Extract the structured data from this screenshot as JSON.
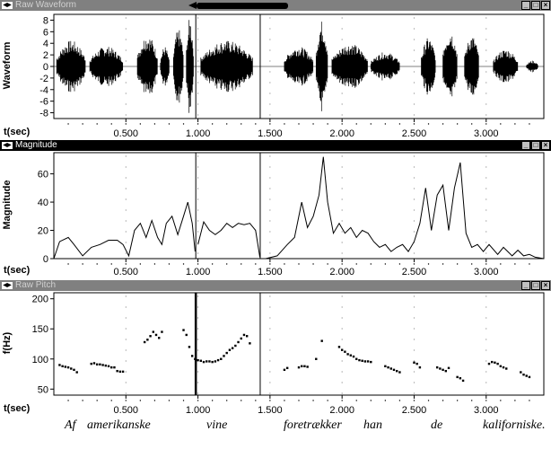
{
  "panels": {
    "waveform": {
      "title": "Raw Waveform",
      "ylabel": "Waveform",
      "xlabel": "t(sec)",
      "yticks": [
        "8",
        "6",
        "4",
        "2",
        "0",
        "-2",
        "-4",
        "-6",
        "-8"
      ],
      "xticks": [
        "0.500",
        "1.000",
        "1.500",
        "2.000",
        "2.500",
        "3.000"
      ]
    },
    "magnitude": {
      "title": "Magnitude",
      "ylabel": "Magnitude",
      "xlabel": "t(sec)",
      "yticks": [
        "60",
        "40",
        "20",
        "0"
      ],
      "xticks": [
        "0.500",
        "1.000",
        "1.500",
        "2.000",
        "2.500",
        "3.000"
      ]
    },
    "pitch": {
      "title": "Raw Pitch",
      "ylabel": "f(Hz)",
      "xlabel": "t(sec)",
      "yticks": [
        "200",
        "150",
        "100",
        "50"
      ],
      "xticks": [
        "0.500",
        "1.000",
        "1.500",
        "2.000",
        "2.500",
        "3.000"
      ]
    }
  },
  "window_controls": {
    "minimize": "_",
    "maximize": "□",
    "close": "×"
  },
  "caption": {
    "w1": "Af",
    "w2": "amerikanske",
    "w3": "vine",
    "w4": "foretrækker",
    "w5": "han",
    "w6": "de",
    "w7": "kaliforniske."
  },
  "markers_sec": [
    0.985,
    1.432
  ],
  "chart_data": [
    {
      "type": "line",
      "title": "Raw Waveform",
      "ylabel": "Waveform",
      "xlabel": "t(sec)",
      "xlim": [
        0.0,
        3.4
      ],
      "ylim": [
        -9,
        9
      ],
      "segments": [
        {
          "x": [
            0.02,
            0.22
          ],
          "amp": 4.5
        },
        {
          "x": [
            0.25,
            0.48
          ],
          "amp": 3.5
        },
        {
          "x": [
            0.58,
            0.72
          ],
          "amp": 5.5
        },
        {
          "x": [
            0.74,
            0.8
          ],
          "amp": 3.5
        },
        {
          "x": [
            0.83,
            0.9
          ],
          "amp": 6.5
        },
        {
          "x": [
            0.92,
            0.97
          ],
          "amp": 8.5
        },
        {
          "x": [
            1.02,
            1.38
          ],
          "amp": 4.5
        },
        {
          "x": [
            1.6,
            1.8
          ],
          "amp": 3.5
        },
        {
          "x": [
            1.82,
            1.9
          ],
          "amp": 8.0
        },
        {
          "x": [
            1.93,
            2.18
          ],
          "amp": 4.0
        },
        {
          "x": [
            2.2,
            2.4
          ],
          "amp": 2.5
        },
        {
          "x": [
            2.55,
            2.65
          ],
          "amp": 5.0
        },
        {
          "x": [
            2.7,
            2.8
          ],
          "amp": 6.5
        },
        {
          "x": [
            2.85,
            2.95
          ],
          "amp": 5.5
        },
        {
          "x": [
            3.05,
            3.22
          ],
          "amp": 3.0
        },
        {
          "x": [
            3.28,
            3.36
          ],
          "amp": 1.0
        }
      ]
    },
    {
      "type": "line",
      "title": "Magnitude",
      "ylabel": "Magnitude",
      "xlabel": "t(sec)",
      "xlim": [
        0.0,
        3.4
      ],
      "ylim": [
        0,
        75
      ],
      "series": [
        {
          "x": [
            0.0,
            0.04,
            0.1,
            0.14,
            0.2,
            0.26,
            0.32,
            0.38,
            0.44,
            0.48,
            0.52,
            0.56,
            0.6,
            0.64,
            0.68,
            0.72,
            0.75,
            0.78,
            0.82,
            0.86,
            0.9,
            0.93,
            0.96,
            0.98
          ],
          "y": [
            0,
            12,
            15,
            10,
            2,
            8,
            10,
            13,
            13,
            10,
            2,
            20,
            25,
            15,
            27,
            15,
            10,
            25,
            30,
            17,
            30,
            40,
            25,
            5
          ]
        },
        {
          "x": [
            1.0,
            1.04,
            1.08,
            1.12,
            1.16,
            1.2,
            1.24,
            1.28,
            1.32,
            1.36,
            1.4,
            1.43
          ],
          "y": [
            10,
            26,
            20,
            17,
            20,
            25,
            22,
            25,
            24,
            25,
            20,
            1
          ]
        },
        {
          "x": [
            1.47,
            1.55,
            1.62,
            1.67,
            1.72,
            1.76,
            1.8,
            1.84,
            1.87,
            1.9,
            1.94,
            1.98,
            2.02,
            2.06,
            2.1,
            2.14,
            2.18,
            2.22,
            2.26,
            2.3,
            2.34,
            2.38,
            2.42,
            2.46,
            2.5,
            2.54,
            2.58,
            2.62,
            2.66,
            2.7,
            2.74,
            2.78,
            2.82,
            2.86,
            2.9,
            2.94,
            2.98,
            3.02,
            3.08,
            3.12,
            3.18,
            3.22,
            3.26,
            3.3,
            3.34,
            3.4
          ],
          "y": [
            0,
            2,
            10,
            15,
            40,
            22,
            30,
            45,
            72,
            40,
            18,
            25,
            18,
            22,
            15,
            20,
            18,
            12,
            8,
            10,
            5,
            8,
            10,
            5,
            12,
            25,
            50,
            20,
            45,
            52,
            20,
            50,
            68,
            18,
            8,
            10,
            5,
            10,
            3,
            8,
            2,
            6,
            2,
            3,
            1,
            0
          ]
        }
      ]
    },
    {
      "type": "scatter",
      "title": "Raw Pitch",
      "ylabel": "f(Hz)",
      "xlabel": "t(sec)",
      "xlim": [
        0.0,
        3.4
      ],
      "ylim": [
        40,
        210
      ],
      "points": [
        [
          0.04,
          90
        ],
        [
          0.06,
          88
        ],
        [
          0.08,
          87
        ],
        [
          0.1,
          86
        ],
        [
          0.12,
          84
        ],
        [
          0.14,
          82
        ],
        [
          0.16,
          78
        ],
        [
          0.26,
          92
        ],
        [
          0.28,
          93
        ],
        [
          0.3,
          91
        ],
        [
          0.32,
          91
        ],
        [
          0.34,
          90
        ],
        [
          0.36,
          89
        ],
        [
          0.38,
          88
        ],
        [
          0.4,
          86
        ],
        [
          0.42,
          86
        ],
        [
          0.44,
          80
        ],
        [
          0.46,
          79
        ],
        [
          0.48,
          79
        ],
        [
          0.63,
          128
        ],
        [
          0.65,
          132
        ],
        [
          0.67,
          138
        ],
        [
          0.69,
          145
        ],
        [
          0.71,
          140
        ],
        [
          0.73,
          135
        ],
        [
          0.75,
          145
        ],
        [
          0.9,
          148
        ],
        [
          0.92,
          140
        ],
        [
          0.94,
          120
        ],
        [
          0.96,
          105
        ],
        [
          0.98,
          100
        ],
        [
          1.0,
          98
        ],
        [
          1.02,
          97
        ],
        [
          1.04,
          95
        ],
        [
          1.06,
          96
        ],
        [
          1.08,
          96
        ],
        [
          1.1,
          95
        ],
        [
          1.12,
          96
        ],
        [
          1.14,
          98
        ],
        [
          1.16,
          100
        ],
        [
          1.18,
          105
        ],
        [
          1.2,
          110
        ],
        [
          1.22,
          115
        ],
        [
          1.24,
          118
        ],
        [
          1.26,
          122
        ],
        [
          1.28,
          128
        ],
        [
          1.3,
          134
        ],
        [
          1.32,
          140
        ],
        [
          1.34,
          138
        ],
        [
          1.36,
          126
        ],
        [
          1.6,
          82
        ],
        [
          1.62,
          85
        ],
        [
          1.7,
          86
        ],
        [
          1.72,
          88
        ],
        [
          1.74,
          88
        ],
        [
          1.76,
          87
        ],
        [
          1.82,
          100
        ],
        [
          1.86,
          130
        ],
        [
          1.98,
          120
        ],
        [
          2.0,
          115
        ],
        [
          2.02,
          112
        ],
        [
          2.04,
          108
        ],
        [
          2.06,
          106
        ],
        [
          2.08,
          104
        ],
        [
          2.1,
          100
        ],
        [
          2.12,
          98
        ],
        [
          2.14,
          97
        ],
        [
          2.16,
          96
        ],
        [
          2.18,
          96
        ],
        [
          2.2,
          95
        ],
        [
          2.3,
          88
        ],
        [
          2.32,
          86
        ],
        [
          2.34,
          84
        ],
        [
          2.36,
          82
        ],
        [
          2.38,
          80
        ],
        [
          2.4,
          78
        ],
        [
          2.5,
          94
        ],
        [
          2.52,
          92
        ],
        [
          2.54,
          86
        ],
        [
          2.66,
          86
        ],
        [
          2.68,
          84
        ],
        [
          2.7,
          82
        ],
        [
          2.72,
          80
        ],
        [
          2.74,
          85
        ],
        [
          2.8,
          70
        ],
        [
          2.82,
          68
        ],
        [
          2.84,
          64
        ],
        [
          3.02,
          92
        ],
        [
          3.04,
          95
        ],
        [
          3.06,
          94
        ],
        [
          3.08,
          92
        ],
        [
          3.1,
          88
        ],
        [
          3.12,
          86
        ],
        [
          3.14,
          84
        ],
        [
          3.24,
          78
        ],
        [
          3.26,
          74
        ],
        [
          3.28,
          72
        ],
        [
          3.3,
          70
        ]
      ]
    }
  ]
}
